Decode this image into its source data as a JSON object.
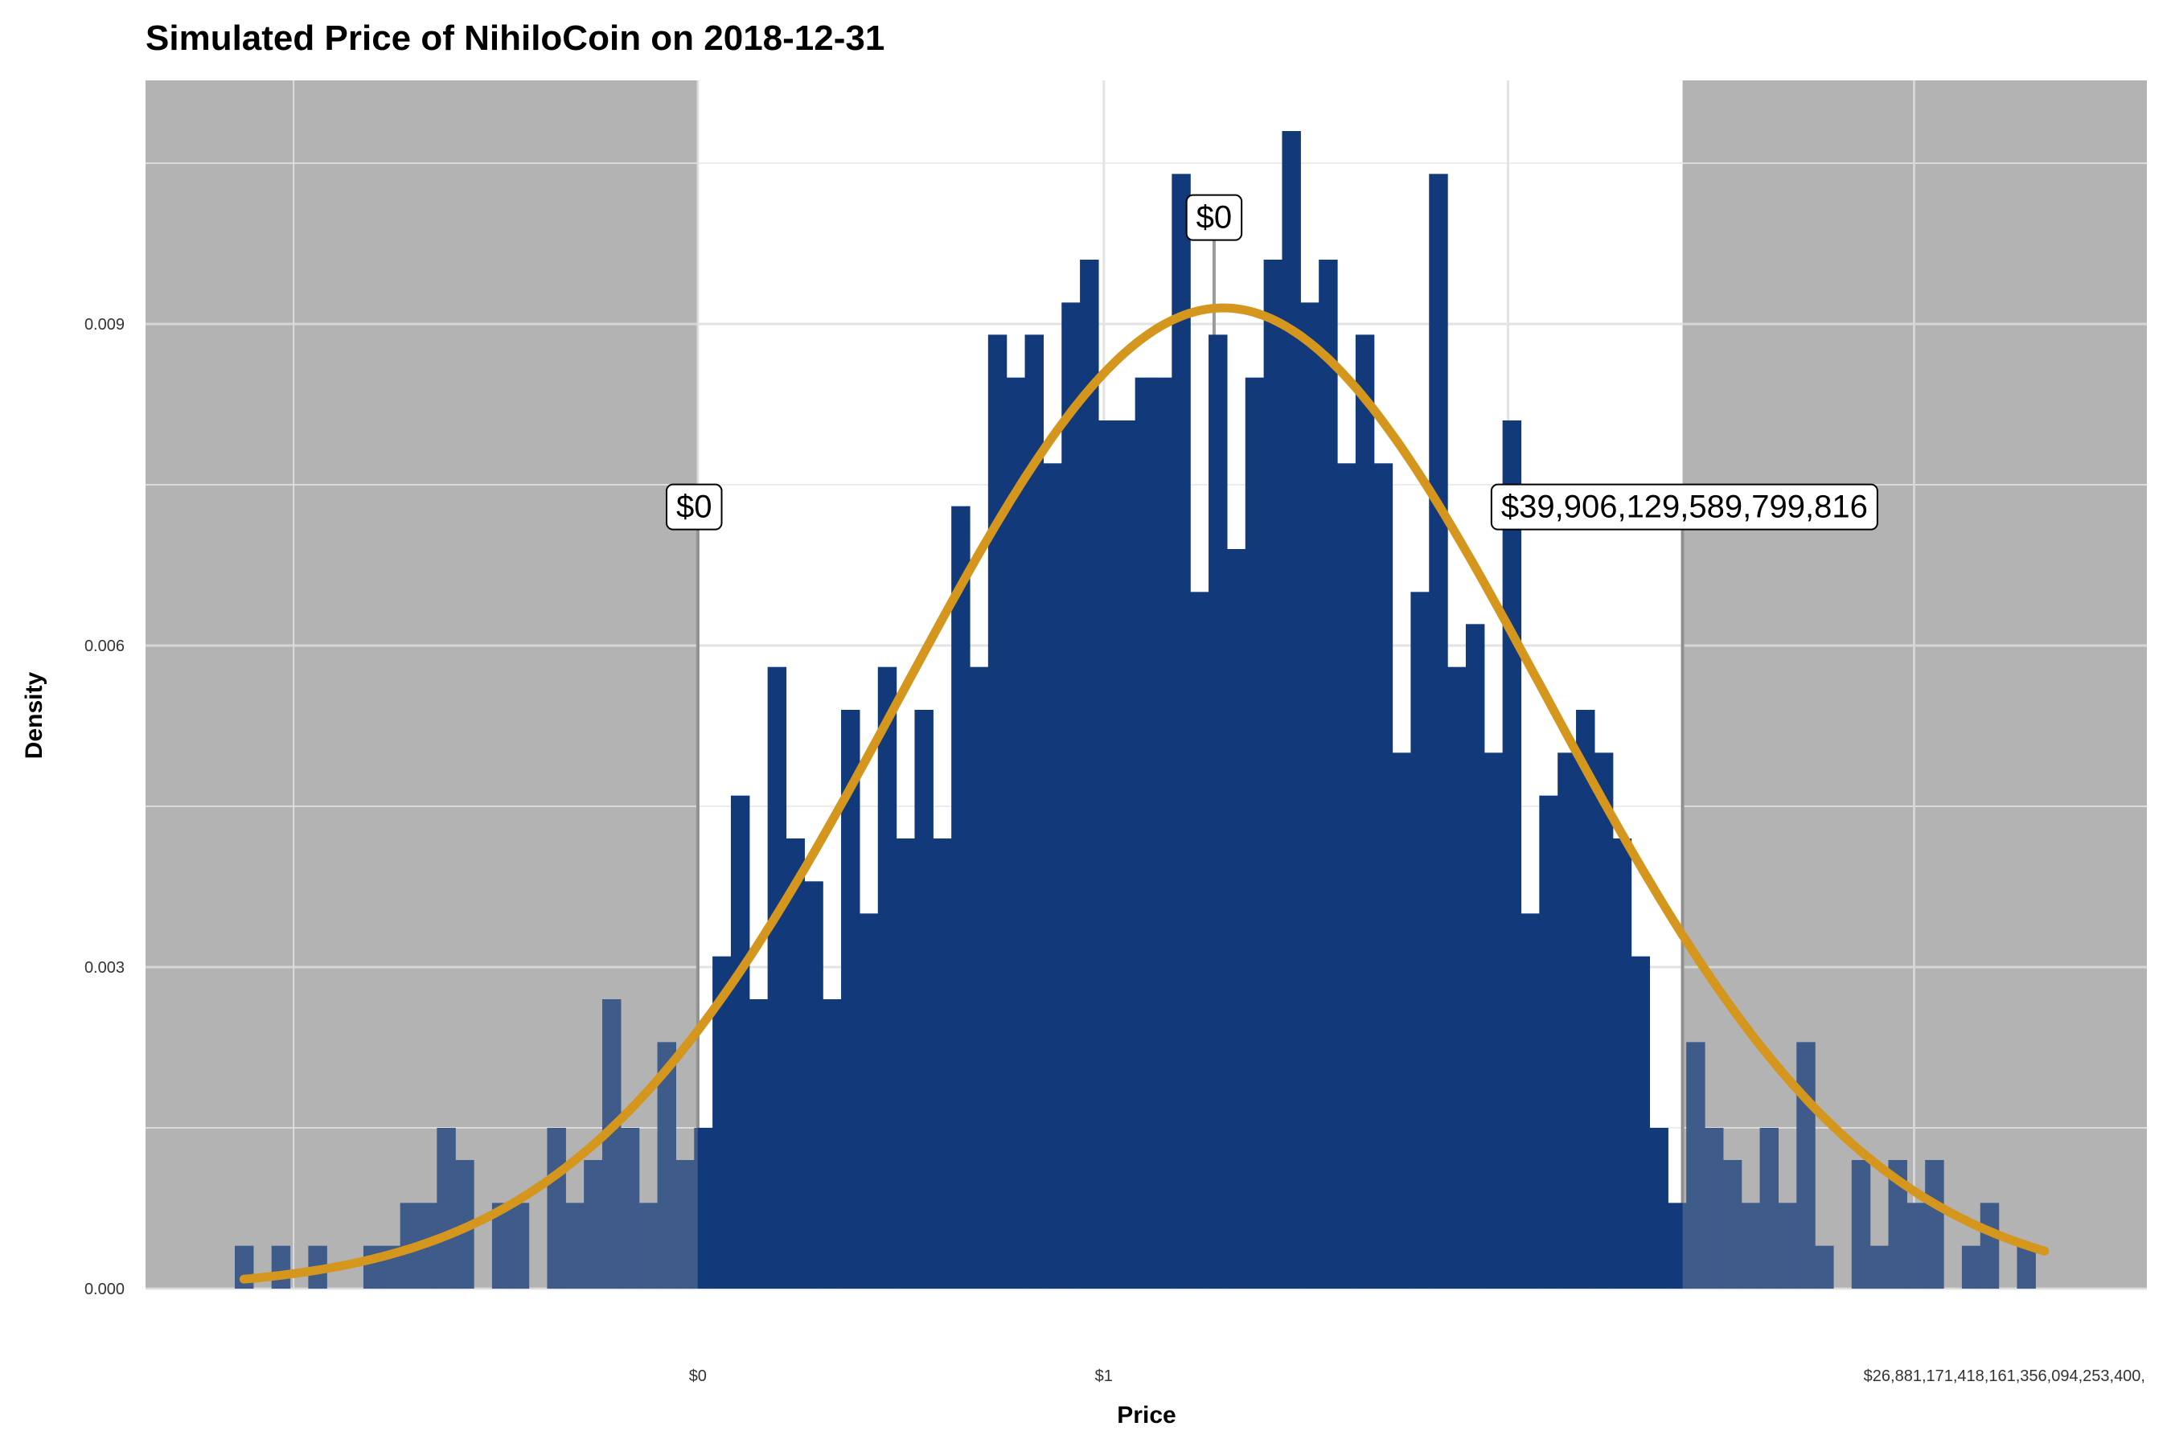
{
  "chart_data": {
    "type": "bar",
    "title": "Simulated Price of NihiloCoin on 2018-12-31",
    "xlabel": "Price",
    "ylabel": "Density",
    "x_ticks": [
      "$0",
      "$1",
      "$26,881,171,418,161,356,094,253,400,"
    ],
    "y_ticks": [
      "0.000",
      "0.003",
      "0.006",
      "0.009"
    ],
    "ylim": [
      0,
      0.0113
    ],
    "grid": true,
    "bar_color": "#12397a",
    "curve_color": "#d4961c",
    "shade_color": "#b3b3b3",
    "hist_values": [
      0.0004,
      0.0,
      0.0004,
      0.0,
      0.0004,
      0.0,
      0.0,
      0.0004,
      0.0004,
      0.0008,
      0.0008,
      0.0015,
      0.0012,
      0.0,
      0.0008,
      0.0008,
      0.0,
      0.0015,
      0.0008,
      0.0012,
      0.0027,
      0.0015,
      0.0008,
      0.0023,
      0.0012,
      0.0015,
      0.0031,
      0.0046,
      0.0027,
      0.0058,
      0.0042,
      0.0038,
      0.0027,
      0.0054,
      0.0035,
      0.0058,
      0.0042,
      0.0054,
      0.0042,
      0.0073,
      0.0058,
      0.0089,
      0.0085,
      0.0089,
      0.0077,
      0.0092,
      0.0096,
      0.0081,
      0.0081,
      0.0085,
      0.0085,
      0.0104,
      0.0065,
      0.0089,
      0.0069,
      0.0085,
      0.0096,
      0.0108,
      0.0092,
      0.0096,
      0.0077,
      0.0089,
      0.0077,
      0.005,
      0.0065,
      0.0104,
      0.0058,
      0.0062,
      0.005,
      0.0081,
      0.0035,
      0.0046,
      0.005,
      0.0054,
      0.005,
      0.0042,
      0.0031,
      0.0015,
      0.0008,
      0.0023,
      0.0015,
      0.0012,
      0.0008,
      0.0015,
      0.0008,
      0.0023,
      0.0004,
      0.0,
      0.0012,
      0.0004,
      0.0012,
      0.0008,
      0.0012,
      0.0,
      0.0004,
      0.0008,
      0.0,
      0.0004
    ],
    "density_curve": {
      "peak": 0.00915,
      "mode_bin": 53.3,
      "sd_bins": 17.5
    },
    "shaded_intervals_bins": [
      [
        -5,
        25.2
      ],
      [
        78.8,
        105
      ]
    ],
    "reference_lines_bins": [
      25.2,
      53.3,
      78.8
    ],
    "annotations": [
      {
        "label": "$0",
        "bin": 25.0,
        "y": 0.0073
      },
      {
        "label": "$0",
        "bin": 53.3,
        "y": 0.01
      },
      {
        "label": "$39,906,129,589,799,816",
        "bin": 78.9,
        "y": 0.0073
      }
    ]
  }
}
